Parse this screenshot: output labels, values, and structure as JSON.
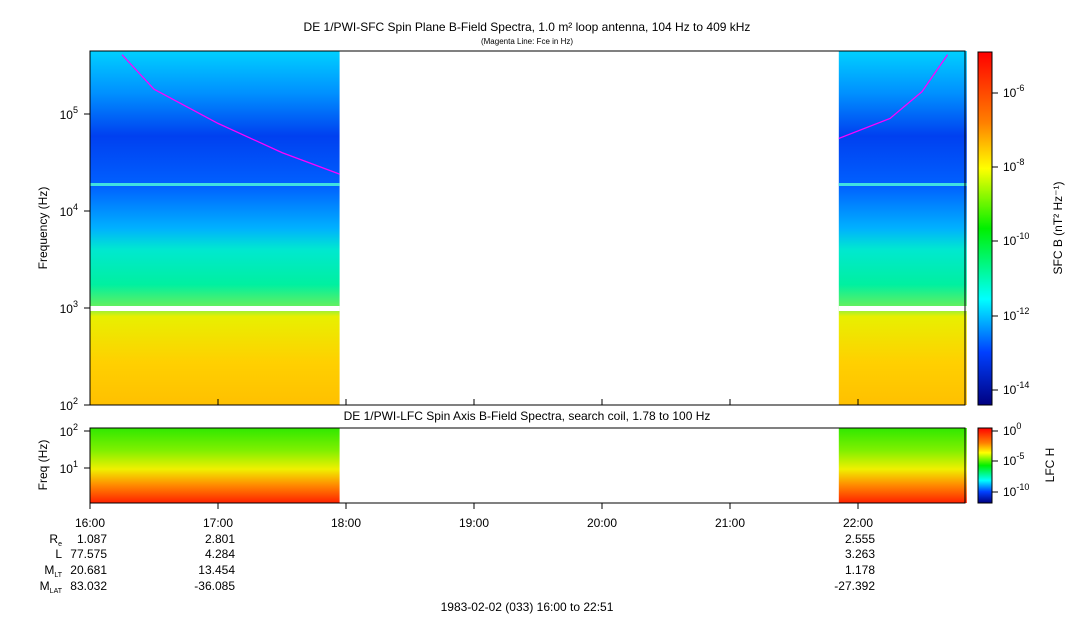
{
  "chart_data": [
    {
      "type": "heatmap",
      "title": "DE 1/PWI-SFC  Spin Plane B-Field Spectra, 1.0 m² loop antenna, 104 Hz to 409 kHz",
      "subtitle": "(Magenta Line: Fce in Hz)",
      "ylabel": "Frequency (Hz)",
      "ylim": [
        100,
        409000
      ],
      "yscale": "log",
      "yticks": [
        "10^2",
        "10^3",
        "10^4",
        "10^5"
      ],
      "colorbar": {
        "label": "SFC B (nT² Hz⁻¹)",
        "range": [
          3e-15,
          1e-05
        ],
        "ticks": [
          "10^-6",
          "10^-8",
          "10^-10",
          "10^-12",
          "10^-14"
        ]
      },
      "data_intervals": [
        [
          "16:00",
          "17:57"
        ],
        [
          "21:51",
          "22:51"
        ]
      ],
      "fce_line": {
        "color": "#ff00ff",
        "points": [
          [
            "16:15",
            409000
          ],
          [
            "16:30",
            180000
          ],
          [
            "17:00",
            80000
          ],
          [
            "17:30",
            40000
          ],
          [
            "17:57",
            24000
          ],
          [
            "21:51",
            56000
          ],
          [
            "22:15",
            90000
          ],
          [
            "22:30",
            170000
          ],
          [
            "22:42",
            409000
          ]
        ]
      }
    },
    {
      "type": "heatmap",
      "title": "DE 1/PWI-LFC  Spin Axis B-Field Spectra, search coil, 1.78 to 100 Hz",
      "ylabel": "Freq (Hz)",
      "ylim": [
        1.78,
        100
      ],
      "yscale": "log",
      "yticks": [
        "10^1",
        "10^2"
      ],
      "colorbar": {
        "label": "LFC H",
        "range": [
          1e-12,
          1
        ],
        "ticks": [
          "10^0",
          "10^-5",
          "10^-10"
        ]
      },
      "data_intervals": [
        [
          "16:00",
          "17:57"
        ],
        [
          "21:51",
          "22:51"
        ]
      ]
    }
  ],
  "xaxis": {
    "ticks": [
      "16:00",
      "17:00",
      "18:00",
      "19:00",
      "20:00",
      "21:00",
      "22:00"
    ]
  },
  "ephemeris": {
    "labels": {
      "re": "R",
      "re_sub": "e",
      "l": "L",
      "mlt": "M",
      "mlt_sub": "LT",
      "mlat": "M",
      "mlat_sub": "LAT"
    },
    "columns": [
      {
        "time": "16:00",
        "re": "1.087",
        "l": "77.575",
        "mlt": "20.681",
        "mlat": "83.032"
      },
      {
        "time": "17:00",
        "re": "2.801",
        "l": "4.284",
        "mlt": "13.454",
        "mlat": "-36.085"
      },
      {
        "time": "22:00",
        "re": "2.555",
        "l": "3.263",
        "mlt": "1.178",
        "mlat": "-27.392"
      }
    ]
  },
  "footer": "1983-02-02 (033) 16:00 to 22:51"
}
